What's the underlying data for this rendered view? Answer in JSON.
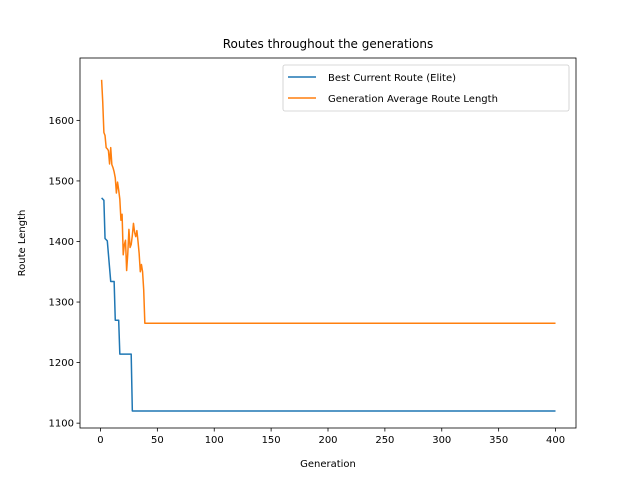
{
  "chart_data": {
    "type": "line",
    "title": "Routes throughout the generations",
    "xlabel": "Generation",
    "ylabel": "Route Length",
    "xlim": [
      -18,
      418
    ],
    "ylim": [
      1092,
      1703
    ],
    "xticks": [
      0,
      50,
      100,
      150,
      200,
      250,
      300,
      350,
      400
    ],
    "yticks": [
      1100,
      1200,
      1300,
      1400,
      1500,
      1600
    ],
    "grid": false,
    "legend_position": "top-right",
    "series": [
      {
        "name": "Best Current Route (Elite)",
        "color": "#1f77b4",
        "points": [
          [
            1,
            1472
          ],
          [
            3,
            1468
          ],
          [
            4,
            1405
          ],
          [
            6,
            1401
          ],
          [
            9,
            1334
          ],
          [
            12,
            1334
          ],
          [
            13,
            1270
          ],
          [
            16,
            1270
          ],
          [
            17,
            1214
          ],
          [
            27,
            1214
          ],
          [
            28,
            1120
          ],
          [
            400,
            1120
          ]
        ]
      },
      {
        "name": "Generation Average Route Length",
        "color": "#ff7f0e",
        "points": [
          [
            1,
            1667
          ],
          [
            2,
            1630
          ],
          [
            3,
            1580
          ],
          [
            4,
            1575
          ],
          [
            5,
            1555
          ],
          [
            6,
            1553
          ],
          [
            7,
            1550
          ],
          [
            8,
            1528
          ],
          [
            9,
            1555
          ],
          [
            10,
            1527
          ],
          [
            11,
            1522
          ],
          [
            12,
            1515
          ],
          [
            13,
            1505
          ],
          [
            14,
            1480
          ],
          [
            15,
            1498
          ],
          [
            16,
            1485
          ],
          [
            17,
            1470
          ],
          [
            18,
            1435
          ],
          [
            19,
            1445
          ],
          [
            20,
            1378
          ],
          [
            21,
            1395
          ],
          [
            22,
            1402
          ],
          [
            23,
            1352
          ],
          [
            24,
            1380
          ],
          [
            25,
            1420
          ],
          [
            26,
            1390
          ],
          [
            27,
            1395
          ],
          [
            28,
            1410
          ],
          [
            29,
            1430
          ],
          [
            30,
            1415
          ],
          [
            31,
            1408
          ],
          [
            32,
            1418
          ],
          [
            33,
            1400
          ],
          [
            34,
            1380
          ],
          [
            35,
            1350
          ],
          [
            36,
            1362
          ],
          [
            37,
            1350
          ],
          [
            38,
            1320
          ],
          [
            39,
            1265
          ],
          [
            400,
            1265
          ]
        ]
      }
    ]
  }
}
